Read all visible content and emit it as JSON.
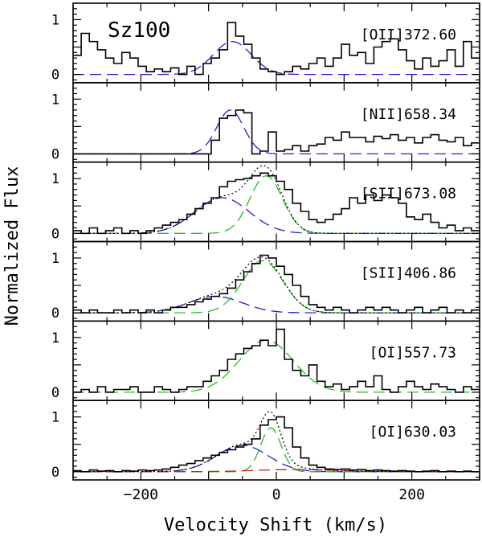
{
  "chart_data": {
    "type": "line",
    "figure_label": "Sz100",
    "xlabel": "Velocity Shift (km/s)",
    "ylabel": "Normalized Flux",
    "xlim": [
      -300,
      300
    ],
    "xticks": [
      -200,
      0,
      200
    ],
    "xtick_labels": [
      "−200",
      "0",
      "200"
    ],
    "ylim": [
      -0.15,
      1.3
    ],
    "yticks": [
      0,
      1
    ],
    "ytick_labels": [
      "0",
      "1"
    ],
    "colors": {
      "observed": "#000000",
      "component_blue": "#2020d0",
      "component_green": "#20c020",
      "component_red": "#d02020",
      "total_fit": "#000000"
    },
    "panels": [
      {
        "line_label": "[OII]372.60",
        "observed": {
          "x": [
            -300,
            -288,
            -276,
            -264,
            -252,
            -240,
            -228,
            -216,
            -204,
            -192,
            -180,
            -168,
            -156,
            -144,
            -132,
            -120,
            -108,
            -96,
            -84,
            -72,
            -60,
            -48,
            -36,
            -24,
            -12,
            0,
            12,
            24,
            36,
            48,
            60,
            72,
            84,
            96,
            108,
            120,
            132,
            144,
            156,
            168,
            180,
            192,
            204,
            216,
            228,
            240,
            252,
            264,
            276,
            288
          ],
          "y": [
            0.35,
            0.75,
            0.6,
            0.45,
            0.3,
            0.2,
            0.4,
            0.3,
            0.15,
            0.05,
            0.1,
            0.05,
            0.12,
            0.0,
            0.15,
            0.0,
            0.2,
            0.3,
            0.45,
            0.95,
            0.7,
            0.55,
            0.3,
            0.1,
            0.05,
            0.0,
            0.05,
            0.15,
            0.1,
            0.2,
            0.3,
            0.15,
            0.3,
            0.55,
            0.35,
            0.4,
            0.2,
            0.5,
            0.6,
            0.65,
            0.45,
            0.25,
            0.1,
            0.3,
            0.15,
            0.25,
            0.45,
            0.15,
            0.6,
            0.3
          ]
        },
        "fits": [
          {
            "component": "blue",
            "amplitude": 0.6,
            "center": -65,
            "sigma": 28
          }
        ]
      },
      {
        "line_label": "[NII]658.34",
        "observed": {
          "x": [
            -300,
            -288,
            -276,
            -264,
            -252,
            -240,
            -228,
            -216,
            -204,
            -192,
            -180,
            -168,
            -156,
            -144,
            -132,
            -120,
            -108,
            -96,
            -84,
            -72,
            -60,
            -48,
            -36,
            -24,
            -12,
            0,
            12,
            24,
            36,
            48,
            60,
            72,
            84,
            96,
            108,
            120,
            132,
            144,
            156,
            168,
            180,
            192,
            204,
            216,
            228,
            240,
            252,
            264,
            276,
            288
          ],
          "y": [
            0,
            0,
            0,
            0,
            0,
            0,
            0,
            0,
            0,
            0,
            0,
            0,
            0,
            0,
            0,
            0,
            0,
            0.25,
            0.65,
            0.7,
            0.8,
            0.75,
            0.0,
            0.05,
            0.4,
            0.05,
            0.08,
            0.15,
            0.05,
            0.15,
            0.18,
            0.3,
            0.25,
            0.4,
            0.3,
            0.3,
            0.22,
            0.32,
            0.28,
            0.35,
            0.25,
            0.3,
            0.2,
            0.3,
            0.35,
            0.25,
            0.22,
            0.3,
            0.15,
            0.2
          ]
        },
        "fits": [
          {
            "component": "blue",
            "amplitude": 0.8,
            "center": -68,
            "sigma": 20
          }
        ]
      },
      {
        "line_label": "[SII]673.08",
        "observed": {
          "x": [
            -300,
            -288,
            -276,
            -264,
            -252,
            -240,
            -228,
            -216,
            -204,
            -192,
            -180,
            -168,
            -156,
            -144,
            -132,
            -120,
            -108,
            -96,
            -84,
            -72,
            -60,
            -48,
            -36,
            -24,
            -12,
            0,
            12,
            24,
            36,
            48,
            60,
            72,
            84,
            96,
            108,
            120,
            132,
            144,
            156,
            168,
            180,
            192,
            204,
            216,
            228,
            240,
            252,
            264,
            276,
            288
          ],
          "y": [
            0.05,
            0.0,
            0.1,
            0.0,
            0.05,
            0.1,
            0.0,
            0.05,
            0.0,
            0.05,
            0.1,
            0.15,
            0.2,
            0.25,
            0.35,
            0.45,
            0.55,
            0.65,
            0.85,
            0.95,
            0.98,
            1.0,
            1.05,
            1.1,
            1.05,
            0.95,
            0.8,
            0.55,
            0.4,
            0.25,
            0.2,
            0.25,
            0.35,
            0.45,
            0.65,
            0.55,
            0.7,
            0.6,
            0.7,
            0.65,
            0.55,
            0.3,
            0.25,
            0.35,
            0.2,
            0.1,
            0.15,
            0.05,
            0.1,
            0.05
          ]
        },
        "fits": [
          {
            "component": "blue",
            "amplitude": 0.65,
            "center": -80,
            "sigma": 40
          },
          {
            "component": "green",
            "amplitude": 1.05,
            "center": -15,
            "sigma": 24
          }
        ]
      },
      {
        "line_label": "[SII]406.86",
        "observed": {
          "x": [
            -300,
            -288,
            -276,
            -264,
            -252,
            -240,
            -228,
            -216,
            -204,
            -192,
            -180,
            -168,
            -156,
            -144,
            -132,
            -120,
            -108,
            -96,
            -84,
            -72,
            -60,
            -48,
            -36,
            -24,
            -12,
            0,
            12,
            24,
            36,
            48,
            60,
            72,
            84,
            96,
            108,
            120,
            132,
            144,
            156,
            168,
            180,
            192,
            204,
            216,
            228,
            240,
            252,
            264,
            276,
            288
          ],
          "y": [
            0.05,
            0.0,
            0.05,
            0.0,
            0.0,
            0.05,
            0.0,
            0.05,
            0.0,
            0.05,
            0.0,
            0.05,
            0.1,
            0.1,
            0.15,
            0.2,
            0.25,
            0.3,
            0.35,
            0.45,
            0.6,
            0.75,
            0.9,
            1.05,
            1.0,
            0.85,
            0.7,
            0.5,
            0.3,
            0.15,
            0.1,
            0.05,
            0.1,
            0.05,
            0.0,
            0.05,
            0.1,
            0.05,
            0.1,
            0.05,
            0.0,
            0.05,
            0.1,
            0.0,
            0.05,
            0.1,
            0.0,
            0.05,
            0.0,
            0.05
          ]
        },
        "fits": [
          {
            "component": "blue",
            "amplitude": 0.3,
            "center": -90,
            "sigma": 40
          },
          {
            "component": "green",
            "amplitude": 0.95,
            "center": -20,
            "sigma": 30
          }
        ]
      },
      {
        "line_label": "[OI]557.73",
        "observed": {
          "x": [
            -300,
            -288,
            -276,
            -264,
            -252,
            -240,
            -228,
            -216,
            -204,
            -192,
            -180,
            -168,
            -156,
            -144,
            -132,
            -120,
            -108,
            -96,
            -84,
            -72,
            -60,
            -48,
            -36,
            -24,
            -12,
            0,
            12,
            24,
            36,
            48,
            60,
            72,
            84,
            96,
            108,
            120,
            132,
            144,
            156,
            168,
            180,
            192,
            204,
            216,
            228,
            240,
            252,
            264,
            276,
            288
          ],
          "y": [
            0.0,
            0.05,
            0.0,
            0.1,
            0.0,
            0.05,
            0.05,
            0.1,
            0.0,
            0.0,
            0.1,
            0.05,
            0.0,
            0.05,
            0.1,
            0.1,
            0.2,
            0.3,
            0.4,
            0.6,
            0.7,
            0.8,
            0.85,
            0.95,
            0.85,
            1.15,
            0.6,
            0.4,
            0.3,
            0.5,
            0.2,
            0.1,
            0.15,
            0.05,
            0.1,
            0.2,
            0.1,
            0.3,
            0.05,
            0.0,
            0.1,
            0.2,
            0.1,
            0.05,
            0.15,
            0.1,
            0.05,
            0.0,
            0.1,
            0.05
          ]
        },
        "fits": [
          {
            "component": "green",
            "amplitude": 0.95,
            "center": -15,
            "sigma": 40
          }
        ]
      },
      {
        "line_label": "[OI]630.03",
        "observed": {
          "x": [
            -300,
            -288,
            -276,
            -264,
            -252,
            -240,
            -228,
            -216,
            -204,
            -192,
            -180,
            -168,
            -156,
            -144,
            -132,
            -120,
            -108,
            -96,
            -84,
            -72,
            -60,
            -48,
            -36,
            -24,
            -12,
            0,
            12,
            24,
            36,
            48,
            60,
            72,
            84,
            96,
            108,
            120,
            132,
            144,
            156,
            168,
            180,
            192,
            204,
            216,
            228,
            240,
            252,
            264,
            276,
            288
          ],
          "y": [
            0.02,
            0.0,
            0.03,
            0.01,
            0.02,
            0.0,
            0.02,
            0.01,
            0.03,
            0.02,
            0.03,
            0.05,
            0.08,
            0.12,
            0.15,
            0.2,
            0.25,
            0.3,
            0.35,
            0.4,
            0.45,
            0.5,
            0.6,
            0.85,
            0.95,
            1.0,
            0.8,
            0.45,
            0.25,
            0.12,
            0.08,
            0.05,
            0.04,
            0.05,
            0.03,
            0.04,
            0.02,
            0.03,
            0.02,
            0.01,
            0.02,
            0.01,
            0.0,
            0.01,
            0.02,
            0.0,
            0.01,
            0.0,
            0.01,
            0.0
          ]
        },
        "fits": [
          {
            "component": "blue",
            "amplitude": 0.48,
            "center": -50,
            "sigma": 38
          },
          {
            "component": "green",
            "amplitude": 0.8,
            "center": -8,
            "sigma": 15
          },
          {
            "component": "red",
            "amplitude": 0.04,
            "center": 30,
            "sigma": 60
          }
        ]
      }
    ]
  }
}
